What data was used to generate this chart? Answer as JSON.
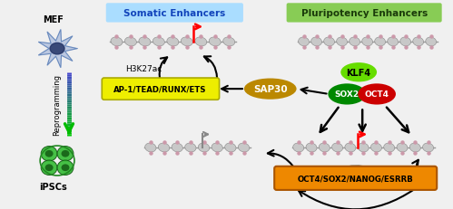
{
  "bg_color": "#f0f0f0",
  "title_somatic": "Somatic Enhancers",
  "title_pluripotency": "Pluripotency Enhancers",
  "label_mef": "MEF",
  "label_ipscs": "iPSCs",
  "label_reprogramming": "Reprogramming",
  "label_h3k27ac": "H3K27ac",
  "label_ap1": "AP-1/TEAD/RUNX/ETS",
  "label_sap30": "SAP30",
  "label_klf4": "KLF4",
  "label_sox2": "SOX2",
  "label_oct4": "OCT4",
  "label_oct4sox2": "OCT4/SOX2/NANOG/ESRRB",
  "color_somatic_bg": "#aaddff",
  "color_pluripotency_bg": "#88cc55",
  "color_ap1_box": "#eeee00",
  "color_sap30": "#bb8800",
  "color_klf4": "#66dd00",
  "color_sox2": "#008800",
  "color_oct4": "#cc0000",
  "color_oct4sox2_box": "#ee8800",
  "color_chromatin_body": "#c8c8c8",
  "color_dot": "#cc99aa",
  "color_line": "#888888"
}
